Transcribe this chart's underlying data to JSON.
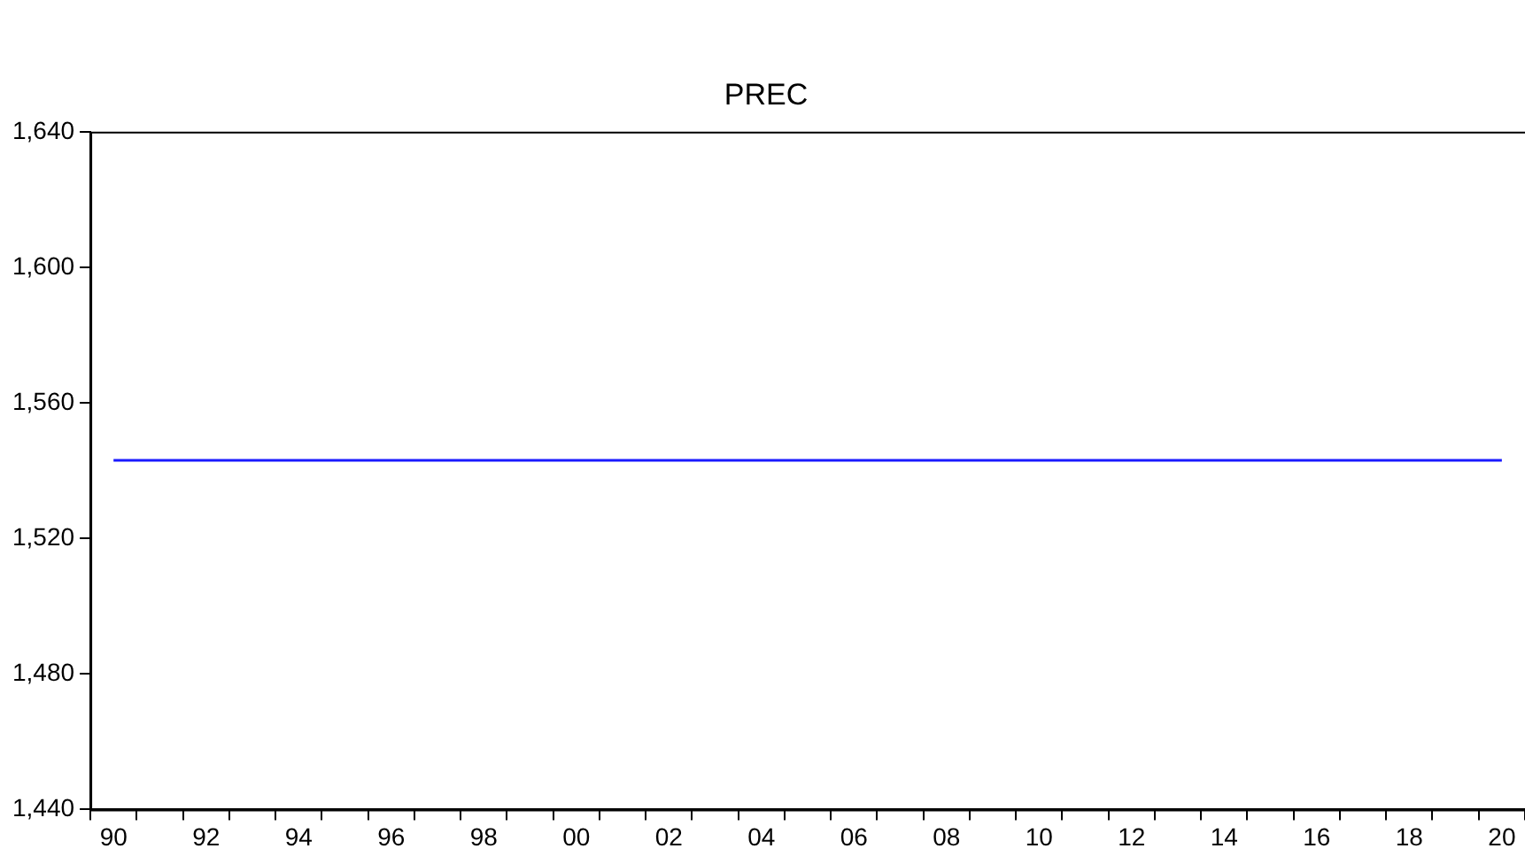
{
  "chart_data": {
    "type": "line",
    "title": "PREC",
    "categories": [
      "90",
      null,
      "92",
      null,
      "94",
      null,
      "96",
      null,
      "98",
      null,
      "00",
      null,
      "02",
      null,
      "04",
      null,
      "06",
      null,
      "08",
      null,
      "10",
      null,
      "12",
      null,
      "14",
      null,
      "16",
      null,
      "18",
      null,
      "20"
    ],
    "series": [
      {
        "color": "#1a1aff",
        "values": [
          1543,
          1543,
          1543,
          1543,
          1543,
          1543,
          1543,
          1543,
          1543,
          1543,
          1543,
          1543,
          1543,
          1543,
          1543,
          1543,
          1543,
          1543,
          1543,
          1543,
          1543,
          1543,
          1543,
          1543,
          1543,
          1543,
          1543,
          1543,
          1543,
          1543,
          1543
        ]
      }
    ],
    "ylim": [
      1440,
      1640
    ],
    "yticks": [
      {
        "value": 1440,
        "label": "1,440"
      },
      {
        "value": 1480,
        "label": "1,480"
      },
      {
        "value": 1520,
        "label": "1,520"
      },
      {
        "value": 1560,
        "label": "1,560"
      },
      {
        "value": 1600,
        "label": "1,600"
      },
      {
        "value": 1640,
        "label": "1,640"
      }
    ],
    "grid": false,
    "legend": false,
    "marker": "none",
    "line_style": "solid"
  }
}
